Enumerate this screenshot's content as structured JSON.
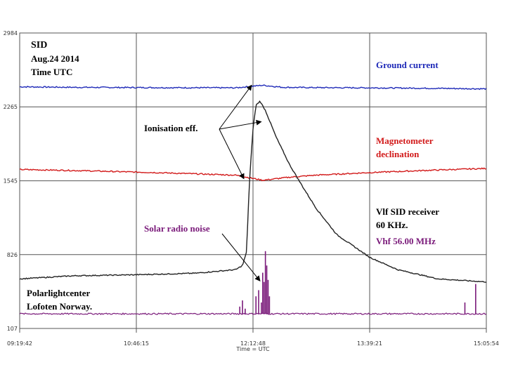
{
  "chart_data": {
    "type": "line",
    "title_lines": [
      "SID",
      "Aug.24 2014",
      "Time UTC"
    ],
    "xlabel": "Time = UTC",
    "x_ticks": [
      "09:19:42",
      "10:46:15",
      "12:12:48",
      "13:39:21",
      "15:05:54"
    ],
    "y_ticks": [
      2984,
      2265,
      1545,
      826,
      107
    ],
    "ylim": [
      107,
      2984
    ],
    "grid": true,
    "colors": {
      "ground": "#1f2ab8",
      "magnetometer": "#d21a1a",
      "vlf": "#222222",
      "vhf": "#7a1a7a",
      "grid": "#555555"
    },
    "series": [
      {
        "key": "ground",
        "name": "Ground current",
        "x": [
          "09:19:42",
          "10:00",
          "11:00",
          "12:00",
          "12:20",
          "12:35",
          "13:00",
          "13:39:21",
          "14:30",
          "15:05:54"
        ],
        "y": [
          2460,
          2455,
          2452,
          2450,
          2475,
          2455,
          2452,
          2450,
          2445,
          2440
        ]
      },
      {
        "key": "magnetometer",
        "name": "Magnetometer declination",
        "x": [
          "09:19:42",
          "10:00",
          "11:00",
          "12:00",
          "12:20",
          "12:40",
          "13:00",
          "13:39:21",
          "14:30",
          "15:05:54"
        ],
        "y": [
          1655,
          1645,
          1625,
          1600,
          1550,
          1580,
          1600,
          1625,
          1650,
          1665
        ]
      },
      {
        "key": "vlf",
        "name": "Vlf SID receiver 60 KHz.",
        "x": [
          "09:19:42",
          "10:00",
          "10:46:15",
          "11:30",
          "12:00",
          "12:05",
          "12:08",
          "12:10",
          "12:12:48",
          "12:15",
          "12:18",
          "12:22",
          "12:30",
          "12:40",
          "12:50",
          "13:00",
          "13:15",
          "13:39:21",
          "14:00",
          "14:30",
          "15:05:54"
        ],
        "y": [
          590,
          620,
          630,
          645,
          680,
          720,
          850,
          1500,
          2050,
          2280,
          2320,
          2230,
          1970,
          1700,
          1480,
          1270,
          1020,
          800,
          680,
          590,
          560
        ]
      },
      {
        "key": "vhf",
        "name": "Vhf 56.00 MHz",
        "baseline": 250,
        "x": [
          "09:19:42",
          "15:05:54"
        ],
        "spikes": [
          {
            "x": "12:03",
            "y": 320
          },
          {
            "x": "12:05",
            "y": 380
          },
          {
            "x": "12:07",
            "y": 300
          },
          {
            "x": "12:15",
            "y": 420
          },
          {
            "x": "12:17",
            "y": 480
          },
          {
            "x": "12:19",
            "y": 360
          },
          {
            "x": "12:20",
            "y": 650
          },
          {
            "x": "12:21",
            "y": 560
          },
          {
            "x": "12:22",
            "y": 860
          },
          {
            "x": "12:23",
            "y": 720
          },
          {
            "x": "12:24",
            "y": 580
          },
          {
            "x": "12:25",
            "y": 420
          },
          {
            "x": "14:50",
            "y": 360
          },
          {
            "x": "14:58",
            "y": 540
          }
        ]
      }
    ],
    "annotations": [
      {
        "key": "ionisation",
        "text": "Ionisation eff."
      },
      {
        "key": "radio",
        "text": "Solar radio noise"
      },
      {
        "key": "site1",
        "text": "Polarlightcenter"
      },
      {
        "key": "site2",
        "text": "Lofoten Norway."
      },
      {
        "key": "ground_label",
        "text": "Ground current"
      },
      {
        "key": "mag1",
        "text": "Magnetometer"
      },
      {
        "key": "mag2",
        "text": "declination"
      },
      {
        "key": "vlf1",
        "text": "Vlf SID receiver"
      },
      {
        "key": "vlf2",
        "text": "60 KHz."
      },
      {
        "key": "vhf_label",
        "text": "Vhf 56.00 MHz"
      }
    ]
  }
}
